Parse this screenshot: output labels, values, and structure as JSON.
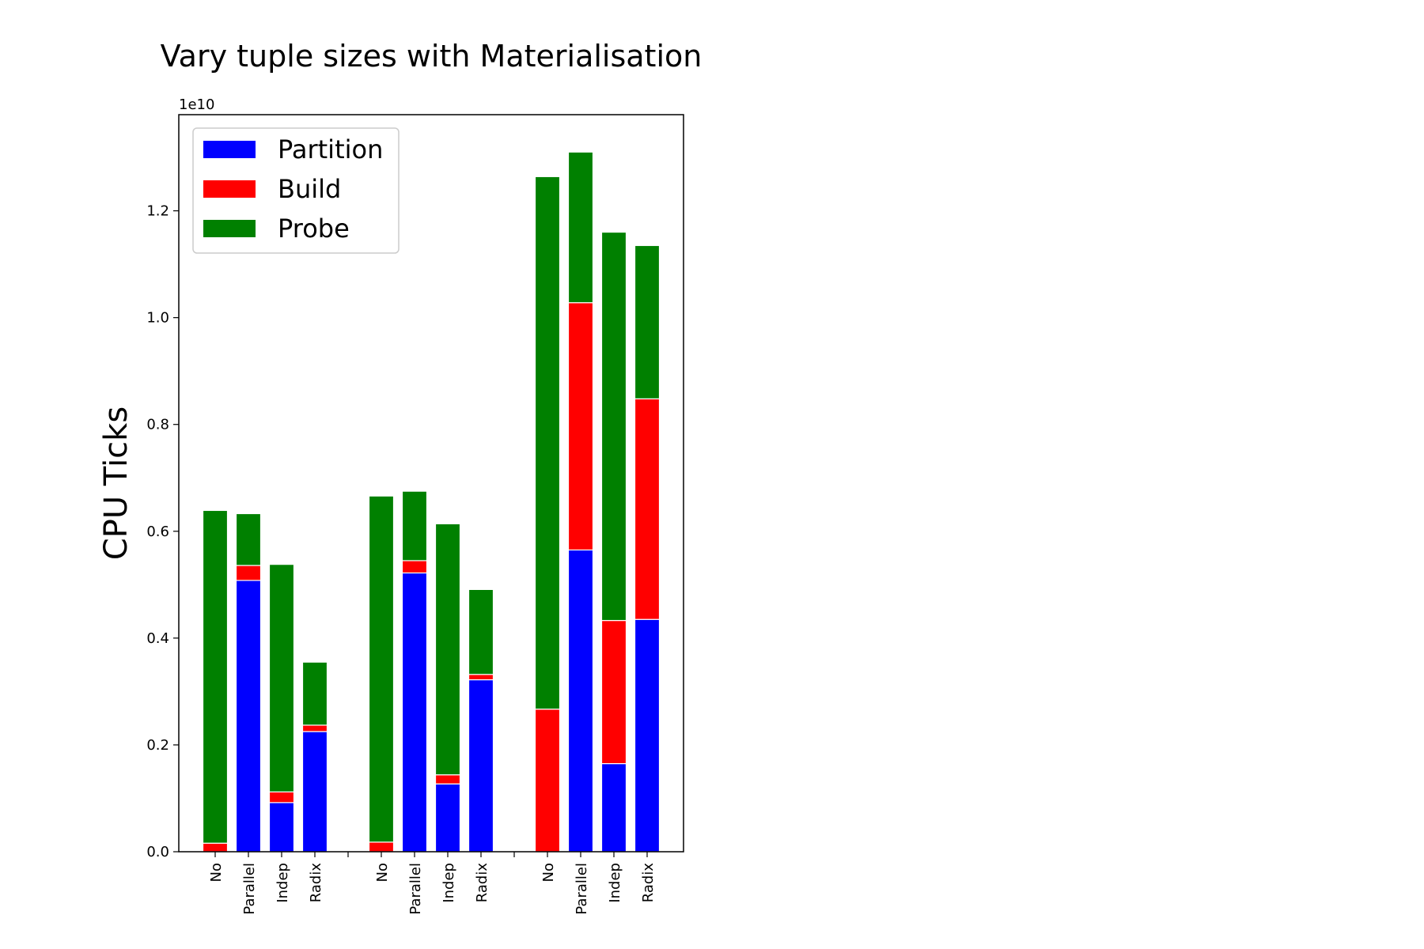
{
  "chart_data": {
    "type": "bar",
    "stacked": true,
    "title": "Vary tuple sizes with Materialisation",
    "xlabel": "",
    "ylabel": "CPU Ticks",
    "y_offset_label": "1e10",
    "ylim": [
      0,
      13800000000.0
    ],
    "yticks": [
      0,
      2000000000.0,
      4000000000.0,
      6000000000.0,
      8000000000.0,
      10000000000.0,
      12000000000.0
    ],
    "ytick_labels": [
      "0.0",
      "0.2",
      "0.4",
      "0.6",
      "0.8",
      "1.0",
      "1.2"
    ],
    "groups": [
      {
        "categories": [
          "No",
          "Parallel",
          "Indep",
          "Radix"
        ]
      },
      {
        "categories": [
          "No",
          "Parallel",
          "Indep",
          "Radix"
        ]
      },
      {
        "categories": [
          "No",
          "Parallel",
          "Indep",
          "Radix"
        ]
      }
    ],
    "categories": [
      "No",
      "Parallel",
      "Indep",
      "Radix",
      "No",
      "Parallel",
      "Indep",
      "Radix",
      "No",
      "Parallel",
      "Indep",
      "Radix"
    ],
    "series": [
      {
        "name": "Partition",
        "color": "#0000ff",
        "values": [
          0,
          5080000000.0,
          920000000.0,
          2250000000.0,
          0,
          5220000000.0,
          1270000000.0,
          3220000000.0,
          0,
          5650000000.0,
          1650000000.0,
          4350000000.0
        ]
      },
      {
        "name": "Build",
        "color": "#ff0000",
        "values": [
          160000000.0,
          280000000.0,
          200000000.0,
          120000000.0,
          180000000.0,
          230000000.0,
          170000000.0,
          100000000.0,
          2670000000.0,
          4630000000.0,
          2680000000.0,
          4130000000.0
        ]
      },
      {
        "name": "Probe",
        "color": "#008000",
        "values": [
          6230000000.0,
          970000000.0,
          4260000000.0,
          1180000000.0,
          6480000000.0,
          1300000000.0,
          4700000000.0,
          1590000000.0,
          9970000000.0,
          2820000000.0,
          7270000000.0,
          2870000000.0
        ]
      }
    ],
    "legend_position": "top-left",
    "grid": false
  }
}
